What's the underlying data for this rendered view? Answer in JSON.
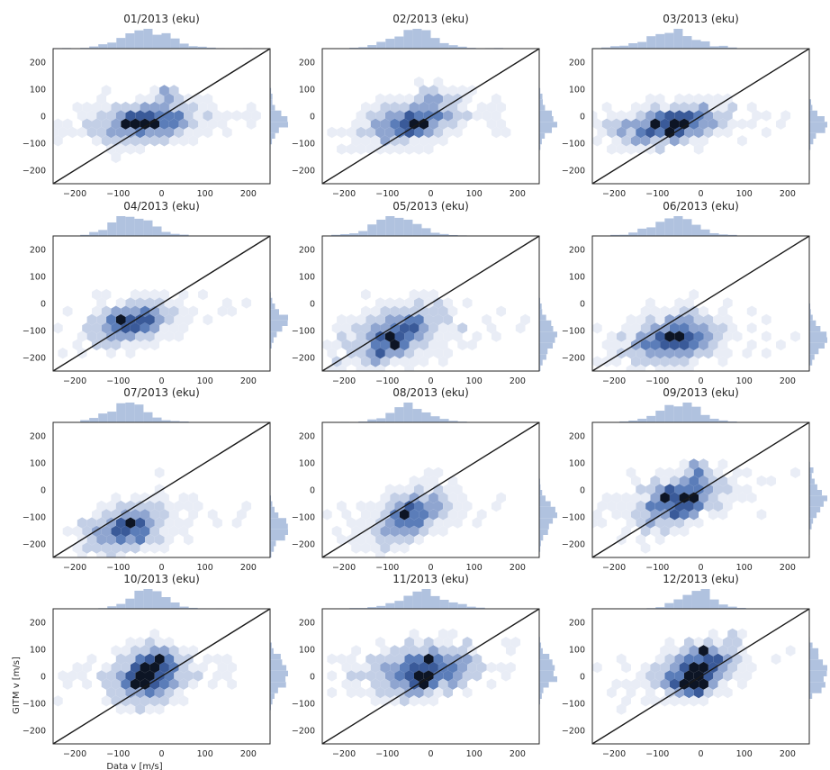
{
  "chart_data": {
    "type": "hexbin-grid",
    "xlabel": "Data v [m/s]",
    "ylabel": "GITM v [m/s]",
    "xlim": [
      -250,
      250
    ],
    "ylim": [
      -250,
      250
    ],
    "xticks": [
      -200,
      -100,
      0,
      100,
      200
    ],
    "yticks": [
      -200,
      -100,
      0,
      100,
      200
    ],
    "reference_line": "y = x",
    "colors": {
      "hex_scale": [
        "#e9edf6",
        "#c3cfe6",
        "#8fa5d0",
        "#5b7db9",
        "#3a5a99",
        "#0d1525"
      ],
      "marginal": "#b0c2df",
      "line": "#1a1a1a"
    },
    "panels": [
      {
        "title": "01/2013 (eku)",
        "cx": -40,
        "cy": -20,
        "sx": 60,
        "sy": 35,
        "corr": 0.3,
        "hot": [
          [
            -30,
            -35
          ],
          [
            -80,
            -20
          ],
          [
            10,
            80
          ]
        ]
      },
      {
        "title": "02/2013 (eku)",
        "cx": -40,
        "cy": -20,
        "sx": 50,
        "sy": 40,
        "corr": 0.4,
        "hot": [
          [
            -45,
            -40
          ],
          [
            -20,
            -30
          ],
          [
            0,
            80
          ]
        ]
      },
      {
        "title": "03/2013 (eku)",
        "cx": -70,
        "cy": -30,
        "sx": 60,
        "sy": 35,
        "corr": 0.4,
        "hot": [
          [
            -100,
            -30
          ],
          [
            -60,
            -50
          ],
          [
            -50,
            -20
          ]
        ]
      },
      {
        "title": "04/2013 (eku)",
        "cx": -70,
        "cy": -70,
        "sx": 45,
        "sy": 40,
        "corr": 0.4,
        "hot": [
          [
            -90,
            -70
          ],
          [
            -30,
            -50
          ],
          [
            -60,
            -80
          ],
          [
            -100,
            -60
          ]
        ]
      },
      {
        "title": "05/2013 (eku)",
        "cx": -80,
        "cy": -120,
        "sx": 50,
        "sy": 55,
        "corr": 0.5,
        "hot": [
          [
            -120,
            -190
          ],
          [
            -40,
            -80
          ],
          [
            -80,
            -150
          ],
          [
            -100,
            -120
          ]
        ]
      },
      {
        "title": "06/2013 (eku)",
        "cx": -60,
        "cy": -130,
        "sx": 50,
        "sy": 45,
        "corr": 0.3,
        "hot": [
          [
            -40,
            -140
          ],
          [
            -80,
            -120
          ]
        ]
      },
      {
        "title": "07/2013 (eku)",
        "cx": -80,
        "cy": -140,
        "sx": 45,
        "sy": 45,
        "corr": 0.4,
        "hot": [
          [
            -60,
            -130
          ],
          [
            -90,
            -160
          ],
          [
            -70,
            -120
          ],
          [
            -40,
            -170
          ]
        ]
      },
      {
        "title": "08/2013 (eku)",
        "cx": -50,
        "cy": -100,
        "sx": 45,
        "sy": 50,
        "corr": 0.5,
        "hot": [
          [
            -60,
            -80
          ],
          [
            -40,
            -60
          ],
          [
            -60,
            -100
          ]
        ]
      },
      {
        "title": "09/2013 (eku)",
        "cx": -50,
        "cy": -40,
        "sx": 45,
        "sy": 50,
        "corr": 0.5,
        "hot": [
          [
            -10,
            80
          ],
          [
            -80,
            -40
          ],
          [
            -30,
            -30
          ]
        ]
      },
      {
        "title": "10/2013 (eku)",
        "cx": -30,
        "cy": 10,
        "sx": 40,
        "sy": 50,
        "corr": 0.3,
        "hot": [
          [
            -10,
            70
          ],
          [
            -50,
            -30
          ],
          [
            -40,
            20
          ]
        ]
      },
      {
        "title": "11/2013 (eku)",
        "cx": -20,
        "cy": 20,
        "sx": 55,
        "sy": 45,
        "corr": 0.3,
        "hot": [
          [
            -30,
            -10
          ],
          [
            0,
            70
          ],
          [
            -10,
            -20
          ]
        ]
      },
      {
        "title": "12/2013 (eku)",
        "cx": -10,
        "cy": 20,
        "sx": 40,
        "sy": 45,
        "corr": 0.4,
        "hot": [
          [
            10,
            90
          ],
          [
            -40,
            -40
          ],
          [
            -10,
            -50
          ],
          [
            10,
            -40
          ]
        ]
      }
    ]
  }
}
